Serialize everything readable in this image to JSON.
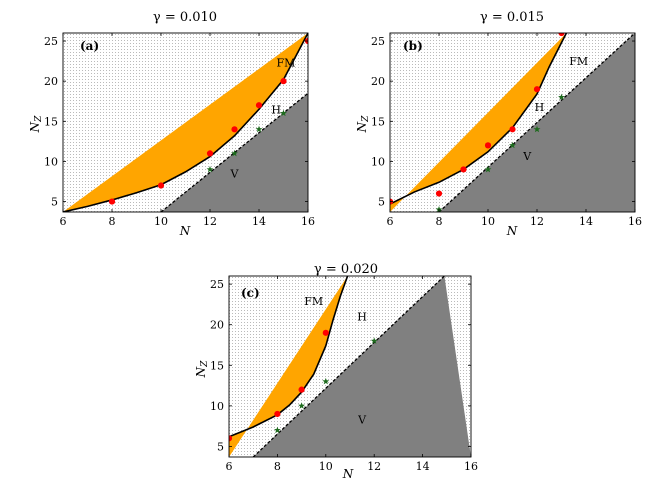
{
  "chart_data": [
    {
      "type": "area",
      "title": "γ = 0.010",
      "panel_label": "(a)",
      "xlabel": "N",
      "ylabel": "N_Z",
      "xlim": [
        6,
        16
      ],
      "ylim": [
        3.7,
        26
      ],
      "xticks": [
        6,
        8,
        10,
        12,
        14,
        16
      ],
      "yticks": [
        5,
        10,
        15,
        20,
        25
      ],
      "regions": [
        "FM",
        "H",
        "V"
      ],
      "region_label_positions": {
        "FM": [
          15.1,
          21.8
        ],
        "H": [
          14.7,
          16.0
        ],
        "V": [
          13.0,
          8.0
        ]
      },
      "colors": {
        "FM": "#FFA500",
        "H": "#F7F7F7",
        "V": "#808080",
        "points": "#FF0000",
        "stars": "#1E6B1E"
      },
      "fm_boundary": {
        "x": [
          6,
          7,
          8,
          9,
          10,
          11,
          12,
          13,
          14,
          15,
          16
        ],
        "y": [
          3.7,
          4.4,
          5.2,
          6.1,
          7.1,
          8.7,
          10.6,
          13.2,
          16.5,
          20.2,
          26
        ]
      },
      "v_boundary": {
        "x": [
          10,
          16
        ],
        "y": [
          3.7,
          18.5
        ]
      },
      "fm_points": {
        "x": [
          8,
          10,
          12,
          13,
          14,
          15,
          16
        ],
        "y": [
          5,
          7,
          11,
          14,
          17,
          20,
          25
        ]
      },
      "v_points": {
        "x": [
          12,
          13,
          14,
          15
        ],
        "y": [
          9,
          11,
          14,
          16
        ]
      }
    },
    {
      "type": "area",
      "title": "γ = 0.015",
      "panel_label": "(b)",
      "xlabel": "N",
      "ylabel": "N_Z",
      "xlim": [
        6,
        16
      ],
      "ylim": [
        3.7,
        26
      ],
      "xticks": [
        6,
        8,
        10,
        12,
        14,
        16
      ],
      "yticks": [
        5,
        10,
        15,
        20,
        25
      ],
      "regions": [
        "FM",
        "H",
        "V"
      ],
      "region_label_positions": {
        "FM": [
          13.7,
          22.0
        ],
        "H": [
          12.1,
          16.3
        ],
        "V": [
          11.6,
          10.2
        ]
      },
      "colors": {
        "FM": "#FFA500",
        "H": "#F7F7F7",
        "V": "#808080",
        "points": "#FF0000",
        "stars": "#1E6B1E"
      },
      "fm_boundary": {
        "x": [
          6,
          7,
          8,
          9,
          10,
          11,
          12,
          12.5,
          13.2
        ],
        "y": [
          4.7,
          6.2,
          7.4,
          9.0,
          11.2,
          14.2,
          18.4,
          21.8,
          26
        ]
      },
      "v_boundary": {
        "x": [
          8,
          16
        ],
        "y": [
          3.7,
          26
        ]
      },
      "fm_points": {
        "x": [
          6,
          8,
          9,
          10,
          11,
          12,
          13
        ],
        "y": [
          5,
          6,
          9,
          12,
          14,
          19,
          26
        ]
      },
      "v_points": {
        "x": [
          8,
          10,
          11,
          12,
          13
        ],
        "y": [
          4,
          9,
          12,
          14,
          18
        ]
      }
    },
    {
      "type": "area",
      "title": "γ = 0.020",
      "panel_label": "(c)",
      "xlabel": "N",
      "ylabel": "N_Z",
      "xlim": [
        6,
        16
      ],
      "ylim": [
        3.7,
        26
      ],
      "xticks": [
        6,
        8,
        10,
        12,
        14,
        16
      ],
      "yticks": [
        5,
        10,
        15,
        20,
        25
      ],
      "regions": [
        "FM",
        "H",
        "V"
      ],
      "region_label_positions": {
        "FM": [
          9.5,
          22.4
        ],
        "H": [
          11.5,
          20.5
        ],
        "V": [
          11.5,
          7.8
        ]
      },
      "colors": {
        "FM": "#FFA500",
        "H": "#F7F7F7",
        "V": "#808080",
        "points": "#FF0000",
        "stars": "#1E6B1E"
      },
      "fm_boundary": {
        "x": [
          6,
          7,
          8,
          8.5,
          9,
          9.5,
          10,
          10.3,
          10.6,
          10.9
        ],
        "y": [
          6.2,
          7.4,
          8.9,
          10.1,
          11.7,
          13.9,
          17.4,
          20.6,
          23.5,
          26
        ]
      },
      "v_boundary": {
        "x": [
          7,
          14.9
        ],
        "y": [
          3.7,
          26
        ]
      },
      "fm_points": {
        "x": [
          6,
          8,
          9,
          10
        ],
        "y": [
          6,
          9,
          12,
          19
        ]
      },
      "v_points": {
        "x": [
          8,
          9,
          10,
          12
        ],
        "y": [
          7,
          10,
          13,
          18
        ]
      }
    }
  ]
}
